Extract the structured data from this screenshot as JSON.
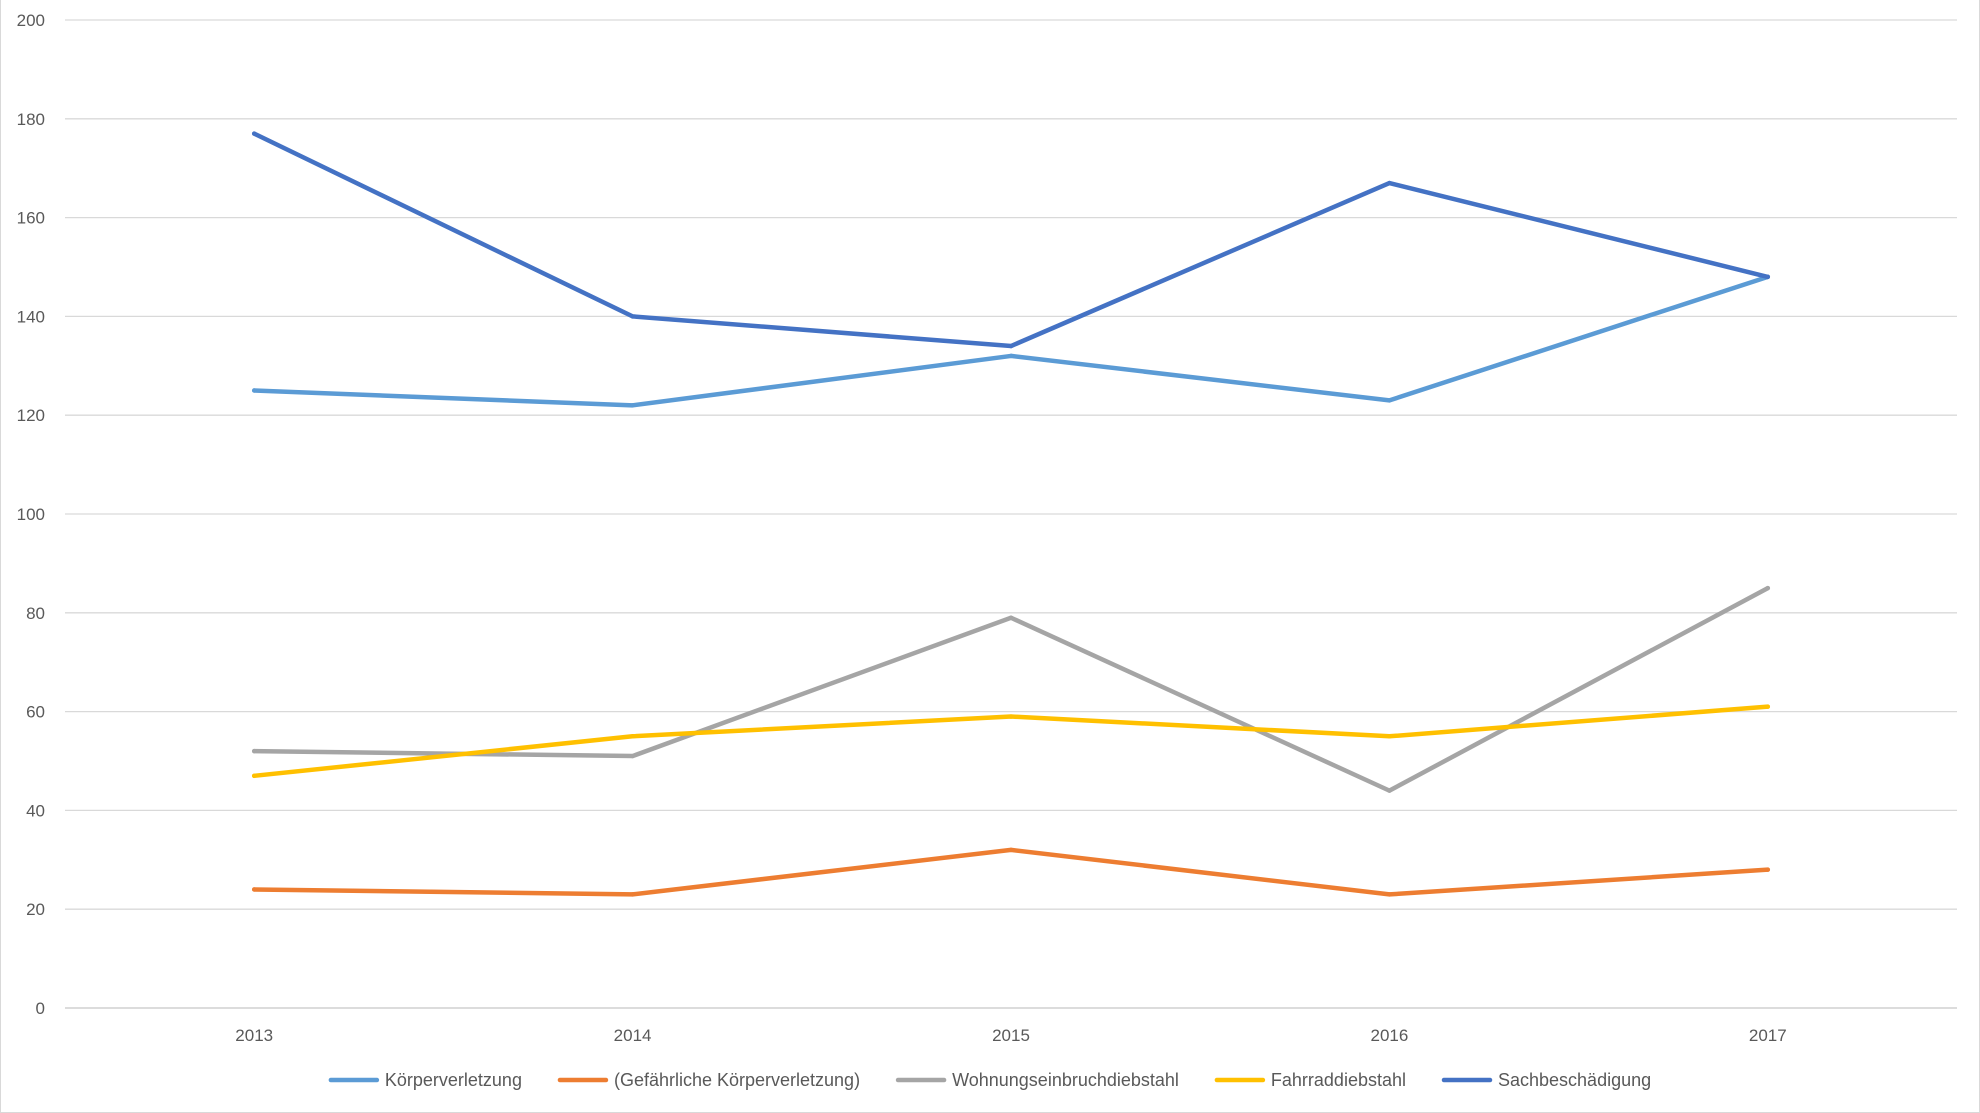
{
  "chart_data": {
    "type": "line",
    "title": "",
    "xlabel": "",
    "ylabel": "",
    "categories": [
      "2013",
      "2014",
      "2015",
      "2016",
      "2017"
    ],
    "ylim": [
      0,
      200
    ],
    "yticks": [
      0,
      20,
      40,
      60,
      80,
      100,
      120,
      140,
      160,
      180,
      200
    ],
    "grid": true,
    "legend_position": "bottom",
    "series": [
      {
        "name": "Körperverletzung",
        "color": "#5b9bd5",
        "values": [
          125,
          122,
          132,
          123,
          148
        ]
      },
      {
        "name": "(Gefährliche Körperverletzung)",
        "color": "#ed7d31",
        "values": [
          24,
          23,
          32,
          23,
          28
        ]
      },
      {
        "name": "Wohnungseinbruchdiebstahl",
        "color": "#a5a5a5",
        "values": [
          52,
          51,
          79,
          44,
          85
        ]
      },
      {
        "name": "Fahrraddiebstahl",
        "color": "#ffc000",
        "values": [
          47,
          55,
          59,
          55,
          61
        ]
      },
      {
        "name": "Sachbeschädigung",
        "color": "#4472c4",
        "values": [
          177,
          140,
          134,
          167,
          148
        ]
      }
    ]
  }
}
